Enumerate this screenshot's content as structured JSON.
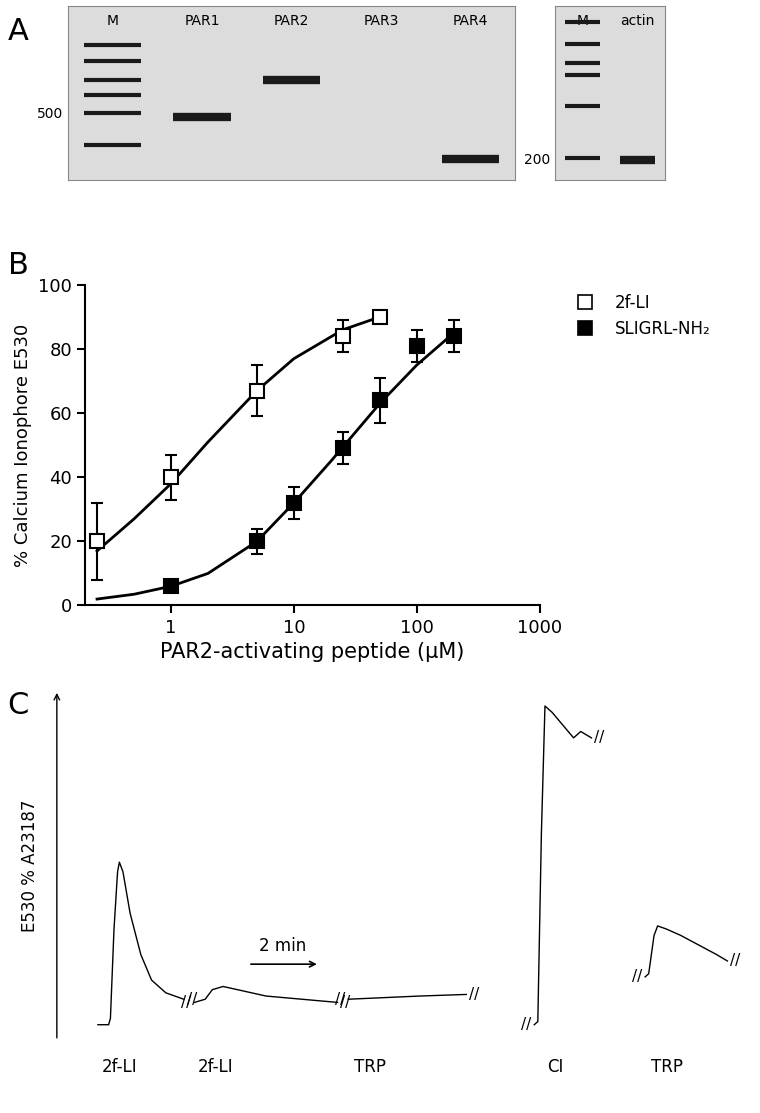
{
  "chart_data": [
    {
      "title": "A",
      "type": "gel",
      "gels": [
        {
          "lanes": [
            "M",
            "PAR1",
            "PAR2",
            "PAR3",
            "PAR4"
          ],
          "bands": [
            [
              1000,
              850,
              700,
              600,
              500,
              360
            ],
            [
              480
            ],
            [
              700
            ],
            [],
            [
              310
            ]
          ],
          "log": "y",
          "ylim": [
            250,
            1500
          ],
          "yticks": [
            500
          ]
        },
        {
          "lanes": [
            "M",
            "actin"
          ],
          "bands": [
            [
              1200,
              900,
              700,
              600,
              400,
              200
            ],
            [
              195
            ]
          ],
          "log": "y",
          "ylim": [
            150,
            1500
          ],
          "yticks": [
            200
          ]
        }
      ]
    },
    {
      "title": "B",
      "type": "scatter",
      "xlabel": "PAR2-activating peptide (μM)",
      "ylabel": "% Calcium Ionophore E530",
      "log": "x",
      "xlim": [
        0.2,
        1000
      ],
      "xticks": [
        1,
        10,
        100,
        1000
      ],
      "ylim": [
        0,
        100
      ],
      "yticks": [
        0,
        20,
        40,
        60,
        80,
        100
      ],
      "legend": "upper left",
      "series": [
        {
          "name": "2f-LI",
          "color": "#ffffff",
          "marker": "square",
          "x": [
            0.25,
            1,
            5,
            25,
            50
          ],
          "values": [
            20,
            40,
            67,
            84,
            90
          ],
          "error": [
            12,
            7,
            8,
            5,
            1
          ],
          "curve": {
            "x": [
              0.25,
              0.5,
              1,
              2,
              5,
              10,
              25,
              50
            ],
            "values": [
              17,
              27,
              38,
              51,
              67,
              77,
              86,
              90
            ]
          }
        },
        {
          "name": "SLIGRL-NH₂",
          "color": "#000000",
          "marker": "square",
          "x": [
            1,
            5,
            10,
            25,
            50,
            100,
            200
          ],
          "values": [
            6,
            20,
            32,
            49,
            64,
            81,
            84
          ],
          "error": [
            1,
            4,
            5,
            5,
            7,
            5,
            5
          ],
          "curve": {
            "x": [
              0.25,
              0.5,
              1,
              2,
              5,
              10,
              20,
              50,
              100,
              200
            ],
            "values": [
              2,
              3.5,
              6,
              10,
              20,
              32,
              45,
              63,
              75,
              85
            ]
          }
        }
      ]
    },
    {
      "title": "C",
      "type": "line",
      "ylabel": "E530 % A23187",
      "tick_labels": false,
      "ylim": [
        -5,
        105
      ],
      "color": "#000000",
      "break_mark": "//",
      "scale_bar": {
        "label": "2 min",
        "length": 2
      },
      "series": [
        {
          "label": "2f-LI",
          "x": [
            0,
            0.3,
            0.35,
            0.45,
            0.55,
            0.6,
            0.7,
            0.9,
            1.2,
            1.5,
            1.9,
            2.4
          ],
          "values": [
            0,
            0,
            2,
            30,
            48,
            51,
            48,
            35,
            22,
            14,
            10,
            8
          ]
        },
        {
          "label": "2f-LI",
          "x": [
            0,
            0.3,
            0.5,
            0.8,
            1.2,
            2,
            3,
            4
          ],
          "values": [
            7,
            8,
            11,
            12,
            11,
            9,
            8,
            7
          ]
        },
        {
          "label": "TRP",
          "x": [
            0,
            1,
            2,
            3.3
          ],
          "values": [
            8,
            8.5,
            9,
            9.5
          ]
        },
        {
          "label": "CI",
          "x": [
            0,
            0.1,
            0.2,
            0.3,
            0.5,
            0.8,
            1.1,
            1.3,
            1.6
          ],
          "values": [
            0,
            1,
            60,
            100,
            98,
            94,
            90,
            92,
            90
          ]
        },
        {
          "label": "TRP",
          "x": [
            0,
            0.1,
            0.25,
            0.35,
            0.6,
            1.0,
            1.5,
            2.0,
            2.3
          ],
          "values": [
            15,
            16,
            28,
            31,
            30,
            28,
            25,
            22,
            20
          ]
        }
      ]
    }
  ]
}
